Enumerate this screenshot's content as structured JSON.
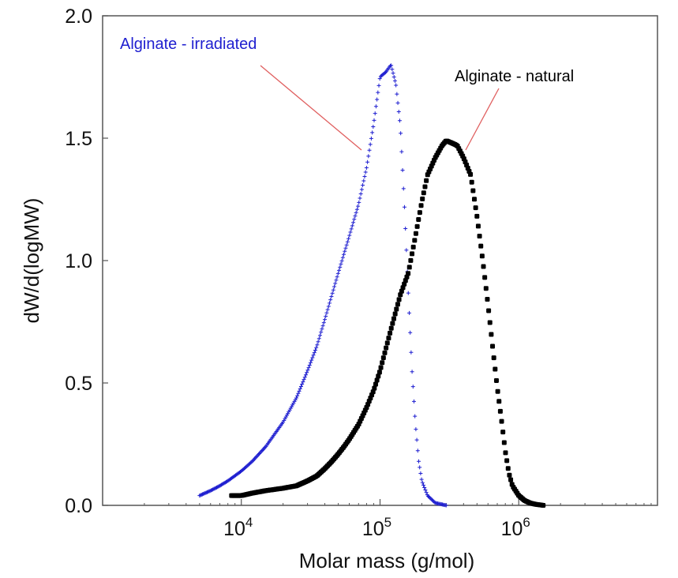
{
  "chart_data": {
    "type": "scatter",
    "title": "",
    "xlabel": "Molar mass (g/mol)",
    "ylabel": "dW/d(logMW)",
    "x_scale": "log",
    "xlim": [
      1000,
      10000000
    ],
    "ylim": [
      0,
      2.0
    ],
    "yticks": [
      0.0,
      0.5,
      1.0,
      1.5,
      2.0
    ],
    "ytick_labels": [
      "0.0",
      "0.5",
      "1.0",
      "1.5",
      "2.0"
    ],
    "xticks": [
      10000,
      100000,
      1000000
    ],
    "xtick_labels": [
      {
        "base": "10",
        "exp": "4"
      },
      {
        "base": "10",
        "exp": "5"
      },
      {
        "base": "10",
        "exp": "6"
      }
    ],
    "grid": false,
    "series": [
      {
        "name": "Alginate - irradiated",
        "color": "#1f1fd0",
        "marker": "plus",
        "x": [
          5000,
          6000,
          7000,
          8000,
          10000,
          12000,
          15000,
          20000,
          25000,
          30000,
          35000,
          40000,
          50000,
          60000,
          70000,
          80000,
          90000,
          100000,
          110000,
          120000,
          130000,
          140000,
          150000,
          160000,
          170000,
          180000,
          190000,
          200000,
          220000,
          250000,
          300000
        ],
        "y": [
          0.04,
          0.06,
          0.08,
          0.1,
          0.14,
          0.18,
          0.24,
          0.34,
          0.44,
          0.55,
          0.65,
          0.76,
          0.95,
          1.1,
          1.23,
          1.38,
          1.56,
          1.75,
          1.77,
          1.8,
          1.72,
          1.55,
          1.22,
          0.86,
          0.55,
          0.33,
          0.18,
          0.1,
          0.04,
          0.01,
          0.0
        ]
      },
      {
        "name": "Alginate - natural",
        "color": "#000000",
        "marker": "circle",
        "x": [
          8500,
          10000,
          12000,
          15000,
          20000,
          25000,
          30000,
          35000,
          40000,
          45000,
          50000,
          55000,
          60000,
          70000,
          80000,
          90000,
          100000,
          120000,
          140000,
          160000,
          180000,
          200000,
          220000,
          250000,
          280000,
          300000,
          330000,
          360000,
          400000,
          450000,
          500000,
          550000,
          600000,
          650000,
          700000,
          750000,
          800000,
          850000,
          900000,
          1000000,
          1100000,
          1200000,
          1300000,
          1500000
        ],
        "y": [
          0.04,
          0.04,
          0.05,
          0.06,
          0.07,
          0.08,
          0.1,
          0.12,
          0.15,
          0.18,
          0.21,
          0.24,
          0.27,
          0.33,
          0.4,
          0.47,
          0.55,
          0.72,
          0.86,
          0.95,
          1.1,
          1.24,
          1.35,
          1.42,
          1.47,
          1.49,
          1.48,
          1.47,
          1.42,
          1.35,
          1.18,
          1.0,
          0.82,
          0.64,
          0.48,
          0.35,
          0.22,
          0.13,
          0.08,
          0.04,
          0.02,
          0.01,
          0.005,
          0.0
        ]
      }
    ],
    "annotations": [
      {
        "text": "Alginate - irradiated",
        "color": "#2020d0"
      },
      {
        "text": "Alginate - natural",
        "color": "#000000"
      }
    ]
  }
}
